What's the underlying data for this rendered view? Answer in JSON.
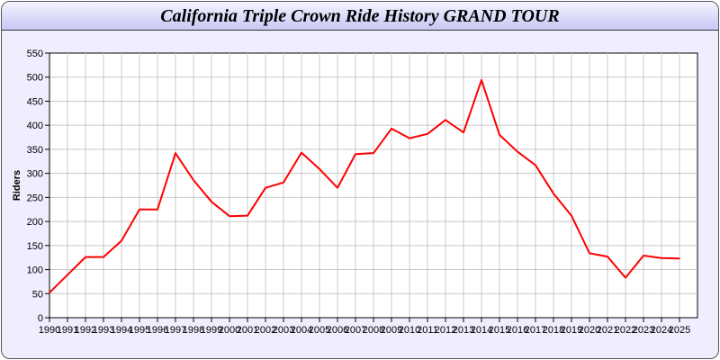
{
  "chart_data": {
    "type": "line",
    "title": "California Triple Crown Ride History GRAND TOUR",
    "xlabel": "",
    "ylabel": "Riders",
    "ylim": [
      0,
      550
    ],
    "yticks": [
      0,
      50,
      100,
      150,
      200,
      250,
      300,
      350,
      400,
      450,
      500,
      550
    ],
    "grid": true,
    "line_color": "#ff0000",
    "x": [
      1990,
      1991,
      1992,
      1993,
      1994,
      1995,
      1996,
      1997,
      1998,
      1999,
      2000,
      2001,
      2002,
      2003,
      2004,
      2005,
      2006,
      2007,
      2008,
      2009,
      2010,
      2011,
      2012,
      2013,
      2014,
      2015,
      2016,
      2017,
      2018,
      2019,
      2020,
      2021,
      2022,
      2023,
      2024,
      2025
    ],
    "values": [
      52,
      89,
      126,
      126,
      160,
      225,
      225,
      342,
      286,
      241,
      211,
      212,
      270,
      281,
      343,
      309,
      270,
      340,
      342,
      393,
      373,
      382,
      411,
      385,
      494,
      380,
      345,
      317,
      258,
      212,
      134,
      127,
      83,
      129,
      124,
      123
    ]
  }
}
